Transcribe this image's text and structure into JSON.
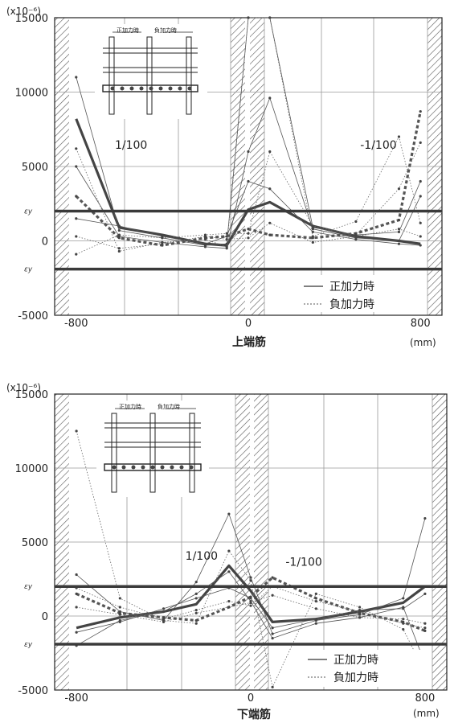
{
  "chart_data": [
    {
      "type": "line",
      "multiplier": "(x10⁻⁶)",
      "xlabel": "上端筋",
      "xunit": "(mm)",
      "ylim": [
        -5000,
        15000
      ],
      "xlim": [
        -900,
        900
      ],
      "yticks": [
        "15000",
        "10000",
        "5000",
        "0",
        "-5000"
      ],
      "ytick_values": [
        15000,
        10000,
        5000,
        0,
        -5000
      ],
      "xticks": [
        "-800",
        "0",
        "800"
      ],
      "xtick_values": [
        -800,
        0,
        800
      ],
      "ey_label": "εy",
      "ey_values": [
        2000,
        -1900
      ],
      "annotations": [
        {
          "text": "1/100",
          "x": -620,
          "y": 6200
        },
        {
          "text": "-1/100",
          "x": 520,
          "y": 6200
        }
      ],
      "legend": {
        "positive": "正加力時",
        "negative": "負加力時"
      },
      "inset": {
        "pos_label": "正加力時",
        "neg_label": "負加力時"
      },
      "series": [
        {
          "style": "pos-bold",
          "x": [
            -800,
            -600,
            -400,
            -200,
            -100,
            0,
            100,
            300,
            500,
            700,
            800
          ],
          "values": [
            8200,
            900,
            400,
            -200,
            -300,
            2100,
            2600,
            1000,
            300,
            0,
            -200
          ]
        },
        {
          "style": "neg-bold",
          "x": [
            -800,
            -600,
            -400,
            -200,
            -100,
            0,
            100,
            300,
            500,
            700,
            800
          ],
          "values": [
            3000,
            200,
            -300,
            200,
            300,
            800,
            400,
            200,
            500,
            1400,
            8700
          ]
        },
        {
          "style": "pos-thin",
          "x": [
            -800,
            -600,
            -400,
            -200,
            -100,
            0,
            100,
            300,
            500,
            700,
            800
          ],
          "values": [
            11000,
            700,
            200,
            -300,
            -200,
            15000,
            15000,
            900,
            400,
            600,
            4000
          ]
        },
        {
          "style": "pos-thin",
          "x": [
            -800,
            -600,
            -400,
            -200,
            -100,
            0,
            100,
            300,
            500,
            700,
            800
          ],
          "values": [
            5000,
            300,
            -100,
            -400,
            -500,
            6000,
            9600,
            800,
            200,
            0,
            3000
          ]
        },
        {
          "style": "pos-thin",
          "x": [
            -800,
            -600,
            -400,
            -200,
            -100,
            0,
            100,
            300,
            500,
            700,
            800
          ],
          "values": [
            1500,
            1000,
            300,
            -200,
            300,
            4000,
            3500,
            600,
            100,
            -200,
            -300
          ]
        },
        {
          "style": "neg-thin",
          "x": [
            -800,
            -600,
            -400,
            -200,
            -100,
            0,
            100,
            300,
            500,
            700,
            800
          ],
          "values": [
            6200,
            -700,
            -100,
            100,
            -400,
            15000,
            15000,
            300,
            1300,
            7000,
            1200
          ]
        },
        {
          "style": "neg-thin",
          "x": [
            -800,
            -600,
            -400,
            -200,
            -100,
            0,
            100,
            300,
            500,
            700,
            800
          ],
          "values": [
            -900,
            400,
            200,
            400,
            500,
            500,
            6000,
            1000,
            400,
            3500,
            6600
          ]
        },
        {
          "style": "neg-thin",
          "x": [
            -800,
            -600,
            -400,
            -200,
            -100,
            0,
            100,
            300,
            500,
            700,
            800
          ],
          "values": [
            300,
            -500,
            -200,
            300,
            100,
            200,
            1200,
            -100,
            300,
            800,
            300
          ]
        }
      ]
    },
    {
      "type": "line",
      "multiplier": "(x10⁻⁶)",
      "xlabel": "下端筋",
      "xunit": "(mm)",
      "ylim": [
        -5000,
        15000
      ],
      "xlim": [
        -900,
        900
      ],
      "yticks": [
        "15000",
        "10000",
        "5000",
        "0",
        "-5000"
      ],
      "ytick_values": [
        15000,
        10000,
        5000,
        0,
        -5000
      ],
      "xticks": [
        "-800",
        "0",
        "800"
      ],
      "xtick_values": [
        -800,
        0,
        800
      ],
      "ey_label": "εy",
      "ey_values": [
        2000,
        -1900
      ],
      "annotations": [
        {
          "text": "1/100",
          "x": -300,
          "y": 3800
        },
        {
          "text": "-1/100",
          "x": 160,
          "y": 3400
        }
      ],
      "legend": {
        "positive": "正加力時",
        "negative": "負加力時"
      },
      "inset": {
        "pos_label": "正加力時",
        "neg_label": "負加力時"
      },
      "series": [
        {
          "style": "pos-bold",
          "x": [
            -800,
            -600,
            -400,
            -250,
            -100,
            0,
            100,
            300,
            500,
            700,
            800
          ],
          "values": [
            -800,
            -100,
            300,
            800,
            3400,
            1700,
            -400,
            -200,
            300,
            900,
            2000
          ]
        },
        {
          "style": "neg-bold",
          "x": [
            -800,
            -600,
            -400,
            -250,
            -100,
            0,
            100,
            300,
            500,
            700,
            800
          ],
          "values": [
            1500,
            200,
            -100,
            -300,
            600,
            1300,
            2600,
            1200,
            200,
            -400,
            -1000
          ]
        },
        {
          "style": "pos-thin",
          "x": [
            -800,
            -600,
            -400,
            -250,
            -100,
            0,
            100,
            300,
            500,
            700,
            800
          ],
          "values": [
            2800,
            300,
            -300,
            2300,
            6900,
            2600,
            -1200,
            -300,
            100,
            1200,
            6600
          ]
        },
        {
          "style": "pos-thin",
          "x": [
            -800,
            -600,
            -400,
            -250,
            -100,
            0,
            100,
            300,
            500,
            700,
            800
          ],
          "values": [
            -1100,
            -400,
            500,
            1200,
            1900,
            1200,
            -800,
            -200,
            400,
            500,
            1500
          ]
        },
        {
          "style": "pos-thin",
          "x": [
            -800,
            -600,
            -400,
            -250,
            -100,
            0,
            100,
            300,
            500,
            700,
            800
          ],
          "values": [
            -2000,
            -300,
            300,
            1500,
            3000,
            1000,
            -1500,
            -500,
            -100,
            600,
            -3200
          ]
        },
        {
          "style": "neg-thin",
          "x": [
            -800,
            -600,
            -400,
            -250,
            -100,
            0,
            100,
            300,
            500,
            700,
            800
          ],
          "values": [
            12500,
            1200,
            -300,
            -500,
            4400,
            2400,
            -4800,
            1500,
            600,
            -900,
            -3800
          ]
        },
        {
          "style": "neg-thin",
          "x": [
            -800,
            -600,
            -400,
            -250,
            -100,
            0,
            100,
            300,
            500,
            700,
            800
          ],
          "values": [
            1900,
            600,
            -200,
            400,
            1000,
            700,
            2000,
            1000,
            300,
            -500,
            -800
          ]
        },
        {
          "style": "neg-thin",
          "x": [
            -800,
            -600,
            -400,
            -250,
            -100,
            0,
            100,
            300,
            500,
            700,
            800
          ],
          "values": [
            600,
            100,
            -400,
            200,
            600,
            900,
            1400,
            500,
            -100,
            -200,
            -500
          ]
        }
      ]
    }
  ]
}
